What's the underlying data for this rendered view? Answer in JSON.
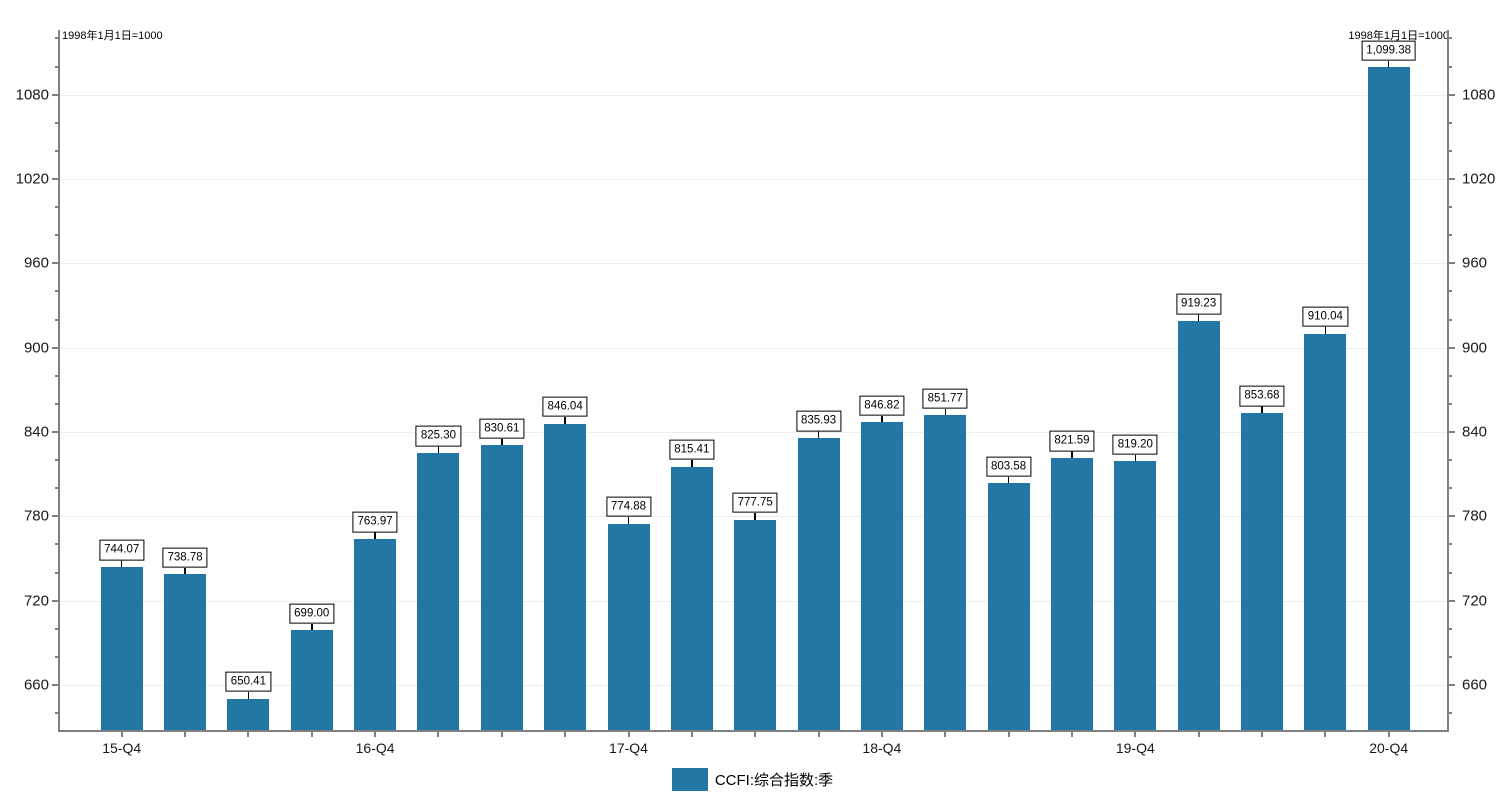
{
  "annotations": {
    "top_left": "1998年1月1日=1000",
    "top_right": "1998年1月1日=1000"
  },
  "legend": {
    "label": "CCFI:综合指数:季"
  },
  "colors": {
    "bar": "#2277a5",
    "axis": "#808080",
    "grid": "#eeeeee",
    "value_label_border": "#000000",
    "value_label_bg": "#ffffff",
    "text": "#000000"
  },
  "chart_data": {
    "type": "bar",
    "title": "",
    "xlabel": "",
    "ylabel": "",
    "series": [
      {
        "name": "CCFI:综合指数:季",
        "values": [
          744.07,
          738.78,
          650.41,
          699.0,
          763.97,
          825.3,
          830.61,
          846.04,
          774.88,
          815.41,
          777.75,
          835.93,
          846.82,
          851.77,
          803.58,
          821.59,
          819.2,
          919.23,
          853.68,
          910.04,
          1099.38
        ]
      }
    ],
    "value_labels": [
      "744.07",
      "738.78",
      "650.41",
      "699.00",
      "763.97",
      "825.30",
      "830.61",
      "846.04",
      "774.88",
      "815.41",
      "777.75",
      "835.93",
      "846.82",
      "851.77",
      "803.58",
      "821.59",
      "819.20",
      "919.23",
      "853.68",
      "910.04",
      "1,099.38"
    ],
    "x_ticks": [
      {
        "index": 0,
        "label": "15-Q4"
      },
      {
        "index": 4,
        "label": "16-Q4"
      },
      {
        "index": 8,
        "label": "17-Q4"
      },
      {
        "index": 12,
        "label": "18-Q4"
      },
      {
        "index": 16,
        "label": "19-Q4"
      },
      {
        "index": 20,
        "label": "20-Q4"
      }
    ],
    "y_axis": {
      "tick_labels": [
        660,
        720,
        780,
        840,
        900,
        960,
        1020,
        1080
      ],
      "minor_step": 20,
      "min": 628,
      "max": 1126,
      "sides": [
        "left",
        "right"
      ],
      "grid": true
    },
    "legend_position": "bottom-center",
    "base_note": "1998年1月1日=1000"
  }
}
